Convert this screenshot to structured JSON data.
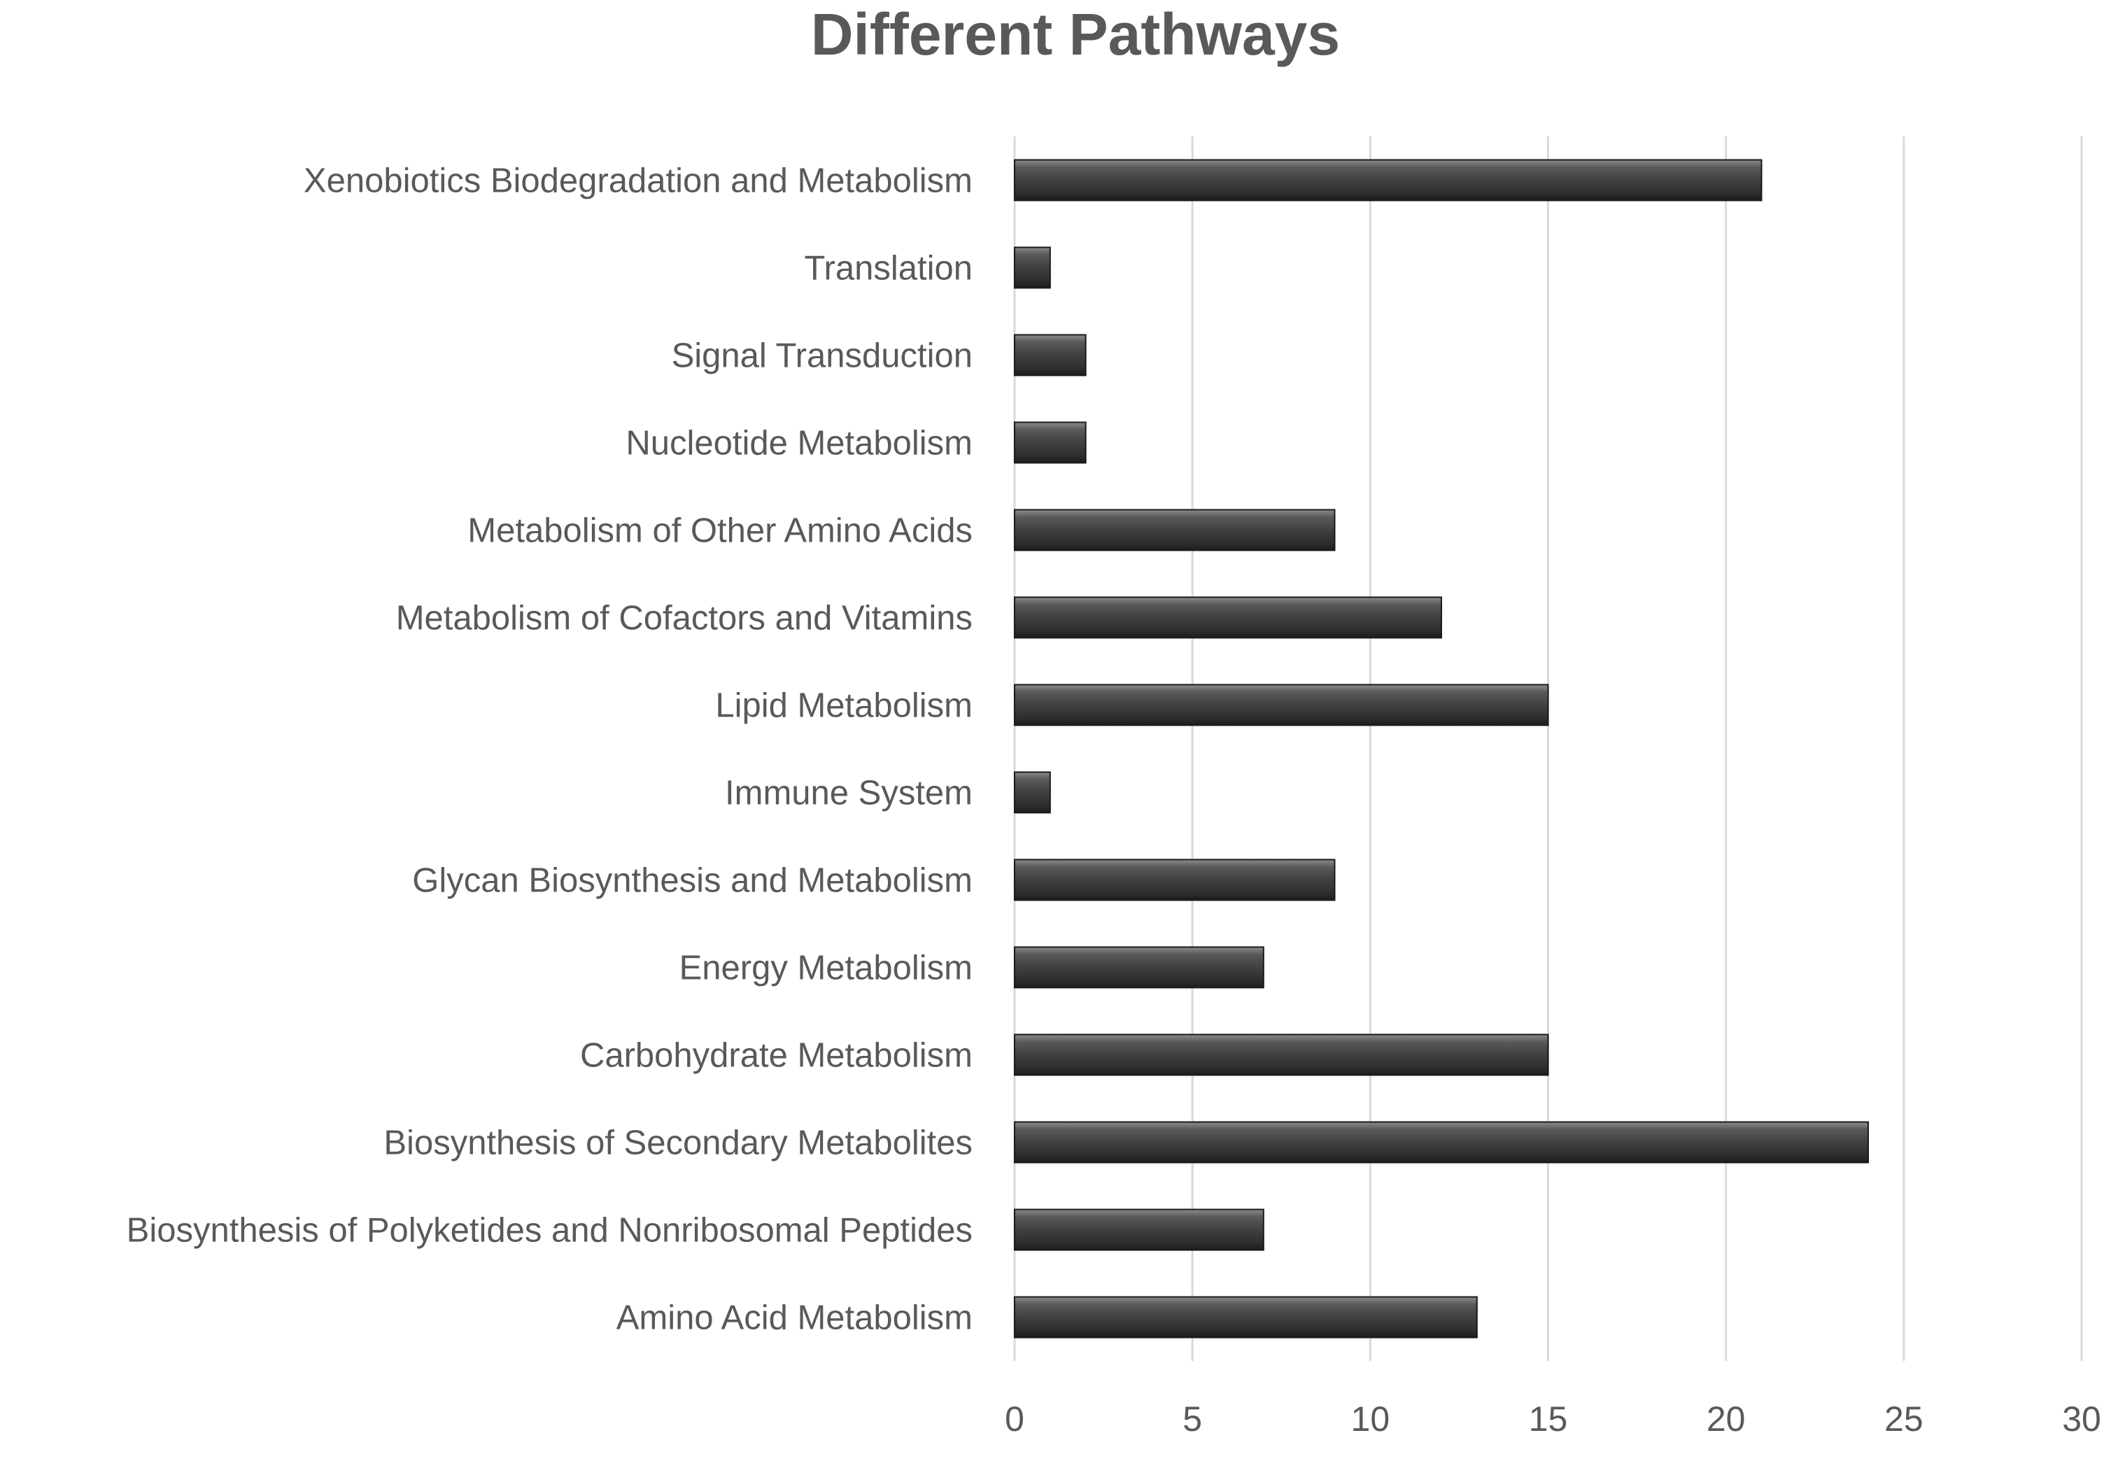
{
  "chart_data": {
    "type": "bar",
    "orientation": "horizontal",
    "title": "Different Pathways",
    "xlabel": "",
    "ylabel": "",
    "xlim": [
      0,
      30
    ],
    "x_ticks": [
      "0",
      "5",
      "10",
      "15",
      "20",
      "25",
      "30"
    ],
    "grid": true,
    "legend": "none",
    "bar_color": "#4a4a4a",
    "categories": [
      "Amino Acid Metabolism",
      "Biosynthesis of Polyketides and Nonribosomal Peptides",
      "Biosynthesis of Secondary Metabolites",
      "Carbohydrate Metabolism",
      "Energy Metabolism",
      "Glycan Biosynthesis and Metabolism",
      "Immune System",
      "Lipid Metabolism",
      "Metabolism of Cofactors and Vitamins",
      "Metabolism of Other Amino Acids",
      "Nucleotide Metabolism",
      "Signal Transduction",
      "Translation",
      "Xenobiotics Biodegradation and Metabolism"
    ],
    "values": [
      13,
      7,
      24,
      15,
      7,
      9,
      1,
      15,
      12,
      9,
      2,
      2,
      1,
      21
    ]
  }
}
